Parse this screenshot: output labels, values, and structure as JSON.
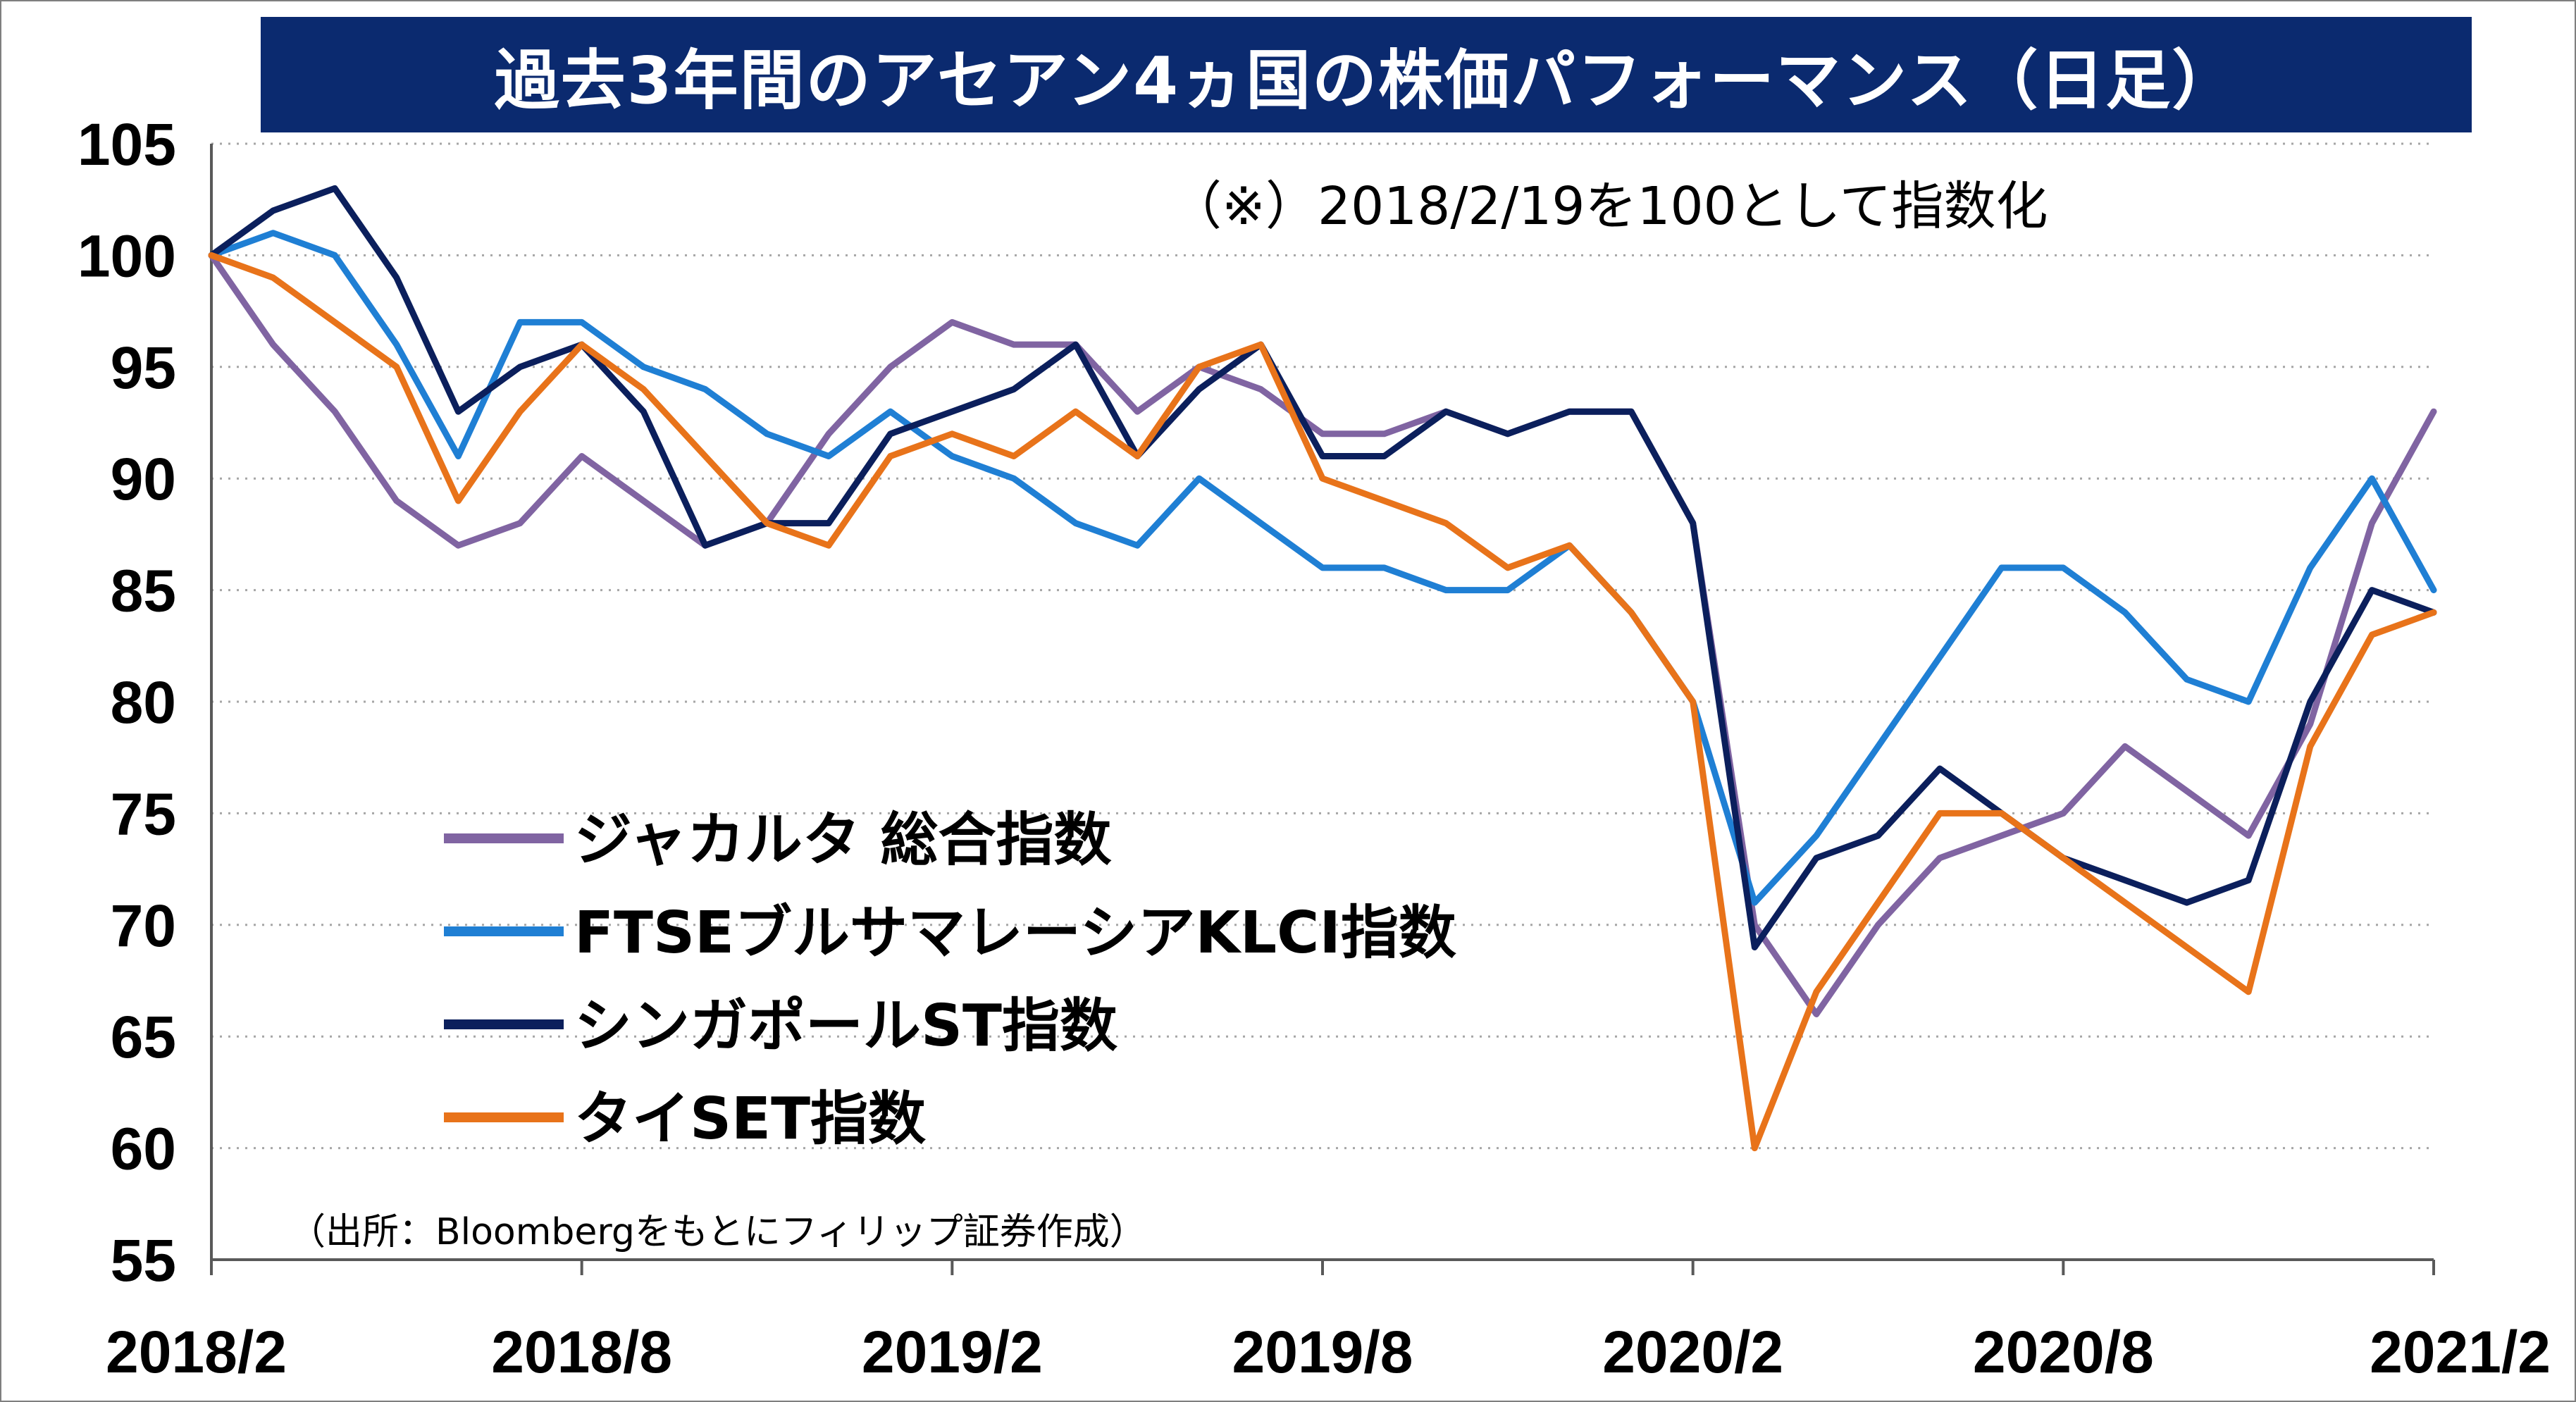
{
  "chart_data": {
    "type": "line",
    "title": "過去3年間のアセアン4ヵ国の株価パフォーマンス（日足）",
    "note": "（※）2018/2/19を100として指数化",
    "source": "（出所：Bloombergをもとにフィリップ証券作成）",
    "xlabel": "",
    "ylabel": "",
    "ylim": [
      55,
      105
    ],
    "yticks": [
      "105",
      "100",
      "95",
      "90",
      "85",
      "80",
      "75",
      "70",
      "65",
      "60",
      "55"
    ],
    "xticks": [
      "2018/2",
      "2018/8",
      "2019/2",
      "2019/8",
      "2020/2",
      "2020/8",
      "2021/2"
    ],
    "grid": "horizontal dotted",
    "legend_position": "lower-left",
    "x": [
      "2018/2",
      "2018/3",
      "2018/4",
      "2018/5",
      "2018/6",
      "2018/7",
      "2018/8",
      "2018/9",
      "2018/10",
      "2018/11",
      "2018/12",
      "2019/1",
      "2019/2",
      "2019/3",
      "2019/4",
      "2019/5",
      "2019/6",
      "2019/7",
      "2019/8",
      "2019/9",
      "2019/10",
      "2019/11",
      "2019/12",
      "2020/1",
      "2020/2",
      "2020/3",
      "2020/4",
      "2020/5",
      "2020/6",
      "2020/7",
      "2020/8",
      "2020/9",
      "2020/10",
      "2020/11",
      "2020/12",
      "2021/1",
      "2021/2"
    ],
    "series": [
      {
        "name": "ジャカルタ 総合指数",
        "color": "#8064a2",
        "values": [
          100,
          96,
          93,
          89,
          87,
          88,
          91,
          89,
          87,
          88,
          92,
          95,
          97,
          96,
          96,
          93,
          95,
          94,
          92,
          92,
          93,
          92,
          93,
          93,
          88,
          70,
          66,
          70,
          73,
          74,
          75,
          78,
          76,
          74,
          79,
          88,
          93
        ]
      },
      {
        "name": "FTSEブルサマレーシアKLCI指数",
        "color": "#1f7fd4",
        "values": [
          100,
          101,
          100,
          96,
          91,
          97,
          97,
          95,
          94,
          92,
          91,
          93,
          91,
          90,
          88,
          87,
          90,
          88,
          86,
          86,
          85,
          85,
          87,
          84,
          80,
          71,
          74,
          78,
          82,
          86,
          86,
          84,
          81,
          80,
          86,
          90,
          85
        ]
      },
      {
        "name": "シンガポールST指数",
        "color": "#0b1f5c",
        "values": [
          100,
          102,
          103,
          99,
          93,
          95,
          96,
          93,
          87,
          88,
          88,
          92,
          93,
          94,
          96,
          91,
          94,
          96,
          91,
          91,
          93,
          92,
          93,
          93,
          88,
          69,
          73,
          74,
          77,
          75,
          73,
          72,
          71,
          72,
          80,
          85,
          84
        ]
      },
      {
        "name": "タイSET指数",
        "color": "#e8731a",
        "values": [
          100,
          99,
          97,
          95,
          89,
          93,
          96,
          94,
          91,
          88,
          87,
          91,
          92,
          91,
          93,
          91,
          95,
          96,
          90,
          89,
          88,
          86,
          87,
          84,
          80,
          60,
          67,
          71,
          75,
          75,
          73,
          71,
          69,
          67,
          78,
          83,
          84
        ]
      }
    ]
  }
}
